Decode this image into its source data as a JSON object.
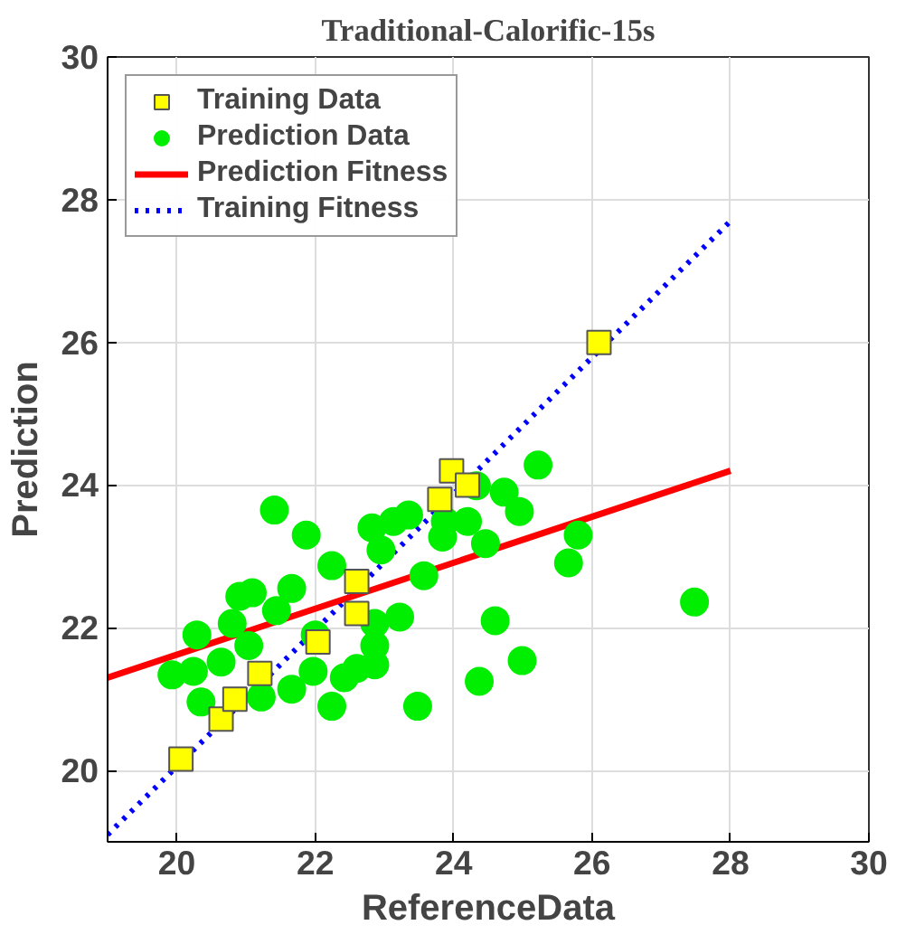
{
  "chart_data": {
    "type": "scatter",
    "title": "Traditional-Calorific-15s",
    "xlabel": "ReferenceData",
    "ylabel": "Prediction",
    "xlim": [
      19,
      30
    ],
    "ylim": [
      19,
      30
    ],
    "xticks": [
      20,
      22,
      24,
      26,
      28,
      30
    ],
    "yticks": [
      20,
      22,
      24,
      26,
      28,
      30
    ],
    "grid": true,
    "legend": "top left",
    "series": [
      {
        "name": "Training Data",
        "marker": "square",
        "color": "#ffff00",
        "x": [
          20.06,
          20.64,
          20.84,
          21.2,
          22.04,
          22.6,
          22.6,
          23.8,
          23.97,
          24.2,
          26.1
        ],
        "values": [
          20.16,
          20.72,
          21.0,
          21.36,
          21.8,
          22.2,
          22.65,
          23.8,
          24.2,
          24.0,
          26.0
        ]
      },
      {
        "name": "Prediction Data",
        "marker": "circle",
        "color": "#00ee00",
        "x": [
          19.93,
          20.24,
          20.29,
          20.35,
          20.64,
          20.8,
          20.91,
          21.09,
          21.04,
          21.22,
          21.41,
          21.44,
          21.66,
          21.66,
          21.87,
          21.97,
          22.0,
          22.24,
          22.24,
          22.42,
          22.6,
          22.86,
          22.86,
          22.86,
          22.82,
          22.95,
          23.13,
          23.35,
          23.22,
          23.48,
          23.57,
          23.84,
          23.88,
          24.2,
          24.33,
          24.46,
          24.6,
          24.37,
          24.73,
          24.95,
          24.99,
          25.22,
          25.66,
          25.8,
          27.48
        ],
        "values": [
          21.34,
          21.39,
          21.9,
          20.96,
          21.52,
          22.06,
          22.44,
          22.49,
          21.75,
          21.03,
          23.65,
          22.24,
          22.55,
          21.14,
          23.3,
          21.39,
          21.9,
          20.9,
          22.87,
          21.3,
          21.43,
          22.06,
          21.75,
          21.48,
          23.4,
          23.09,
          23.49,
          23.58,
          22.15,
          20.9,
          22.73,
          23.27,
          23.49,
          23.49,
          23.99,
          23.18,
          22.1,
          21.25,
          23.9,
          23.63,
          21.54,
          24.28,
          22.91,
          23.3,
          22.36
        ]
      },
      {
        "name": "Prediction Fitness",
        "type": "line",
        "line_style": "solid",
        "color": "#ff0000",
        "x": [
          19,
          28
        ],
        "values": [
          21.3,
          24.2
        ]
      },
      {
        "name": "Training Fitness",
        "type": "line",
        "line_style": "dotted",
        "color": "#0000ff",
        "x": [
          19,
          28
        ],
        "values": [
          19.1,
          27.7
        ]
      }
    ]
  }
}
